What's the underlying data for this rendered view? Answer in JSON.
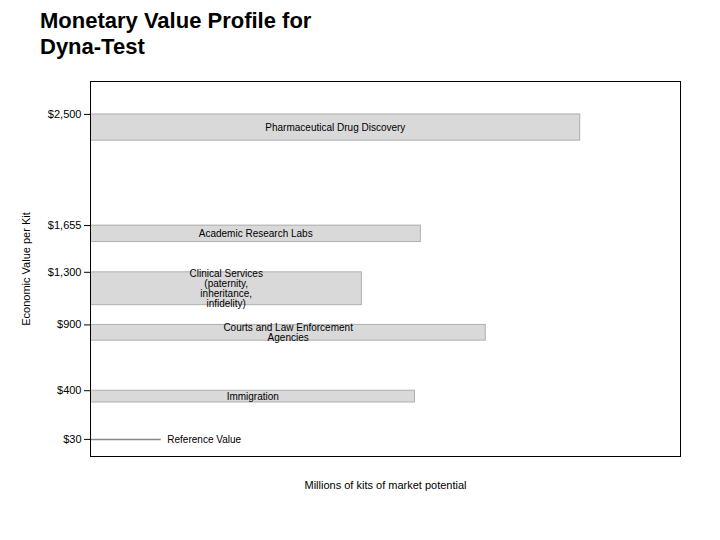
{
  "chart_data": {
    "type": "bar",
    "orientation": "horizontal",
    "title": "Monetary Value Profile for\nDyna-Test",
    "xlabel": "Millions of kits of market potential",
    "ylabel": "Economic Value per Kit",
    "categories": [
      "Pharmaceutical Drug Discovery",
      "Academic Research Labs",
      "Clinical Services\n(paternity,\ninheritance,\ninfidelity)",
      "Courts and Law Enforcement\nAgencies",
      "Immigration"
    ],
    "values": [
      0.83,
      0.56,
      0.46,
      0.67,
      0.55
    ],
    "y_bottom": [
      2300,
      1530,
      1050,
      780,
      310
    ],
    "y_top": [
      2500,
      1655,
      1300,
      900,
      400
    ],
    "color": "#d9d9d9",
    "xlim": [
      0,
      1.0
    ],
    "ylim": [
      -100,
      2750
    ],
    "yticks": [
      {
        "value": 30,
        "label": "$30"
      },
      {
        "value": 400,
        "label": "$400"
      },
      {
        "value": 900,
        "label": "$900"
      },
      {
        "value": 1300,
        "label": "$1,300"
      },
      {
        "value": 1655,
        "label": "$1,655"
      },
      {
        "value": 2500,
        "label": "$2,500"
      }
    ],
    "tick_labels": "y",
    "grid": false,
    "annotations": [
      {
        "text": "Reference Value",
        "y": 30,
        "x": [
          0,
          0.12
        ]
      }
    ]
  }
}
